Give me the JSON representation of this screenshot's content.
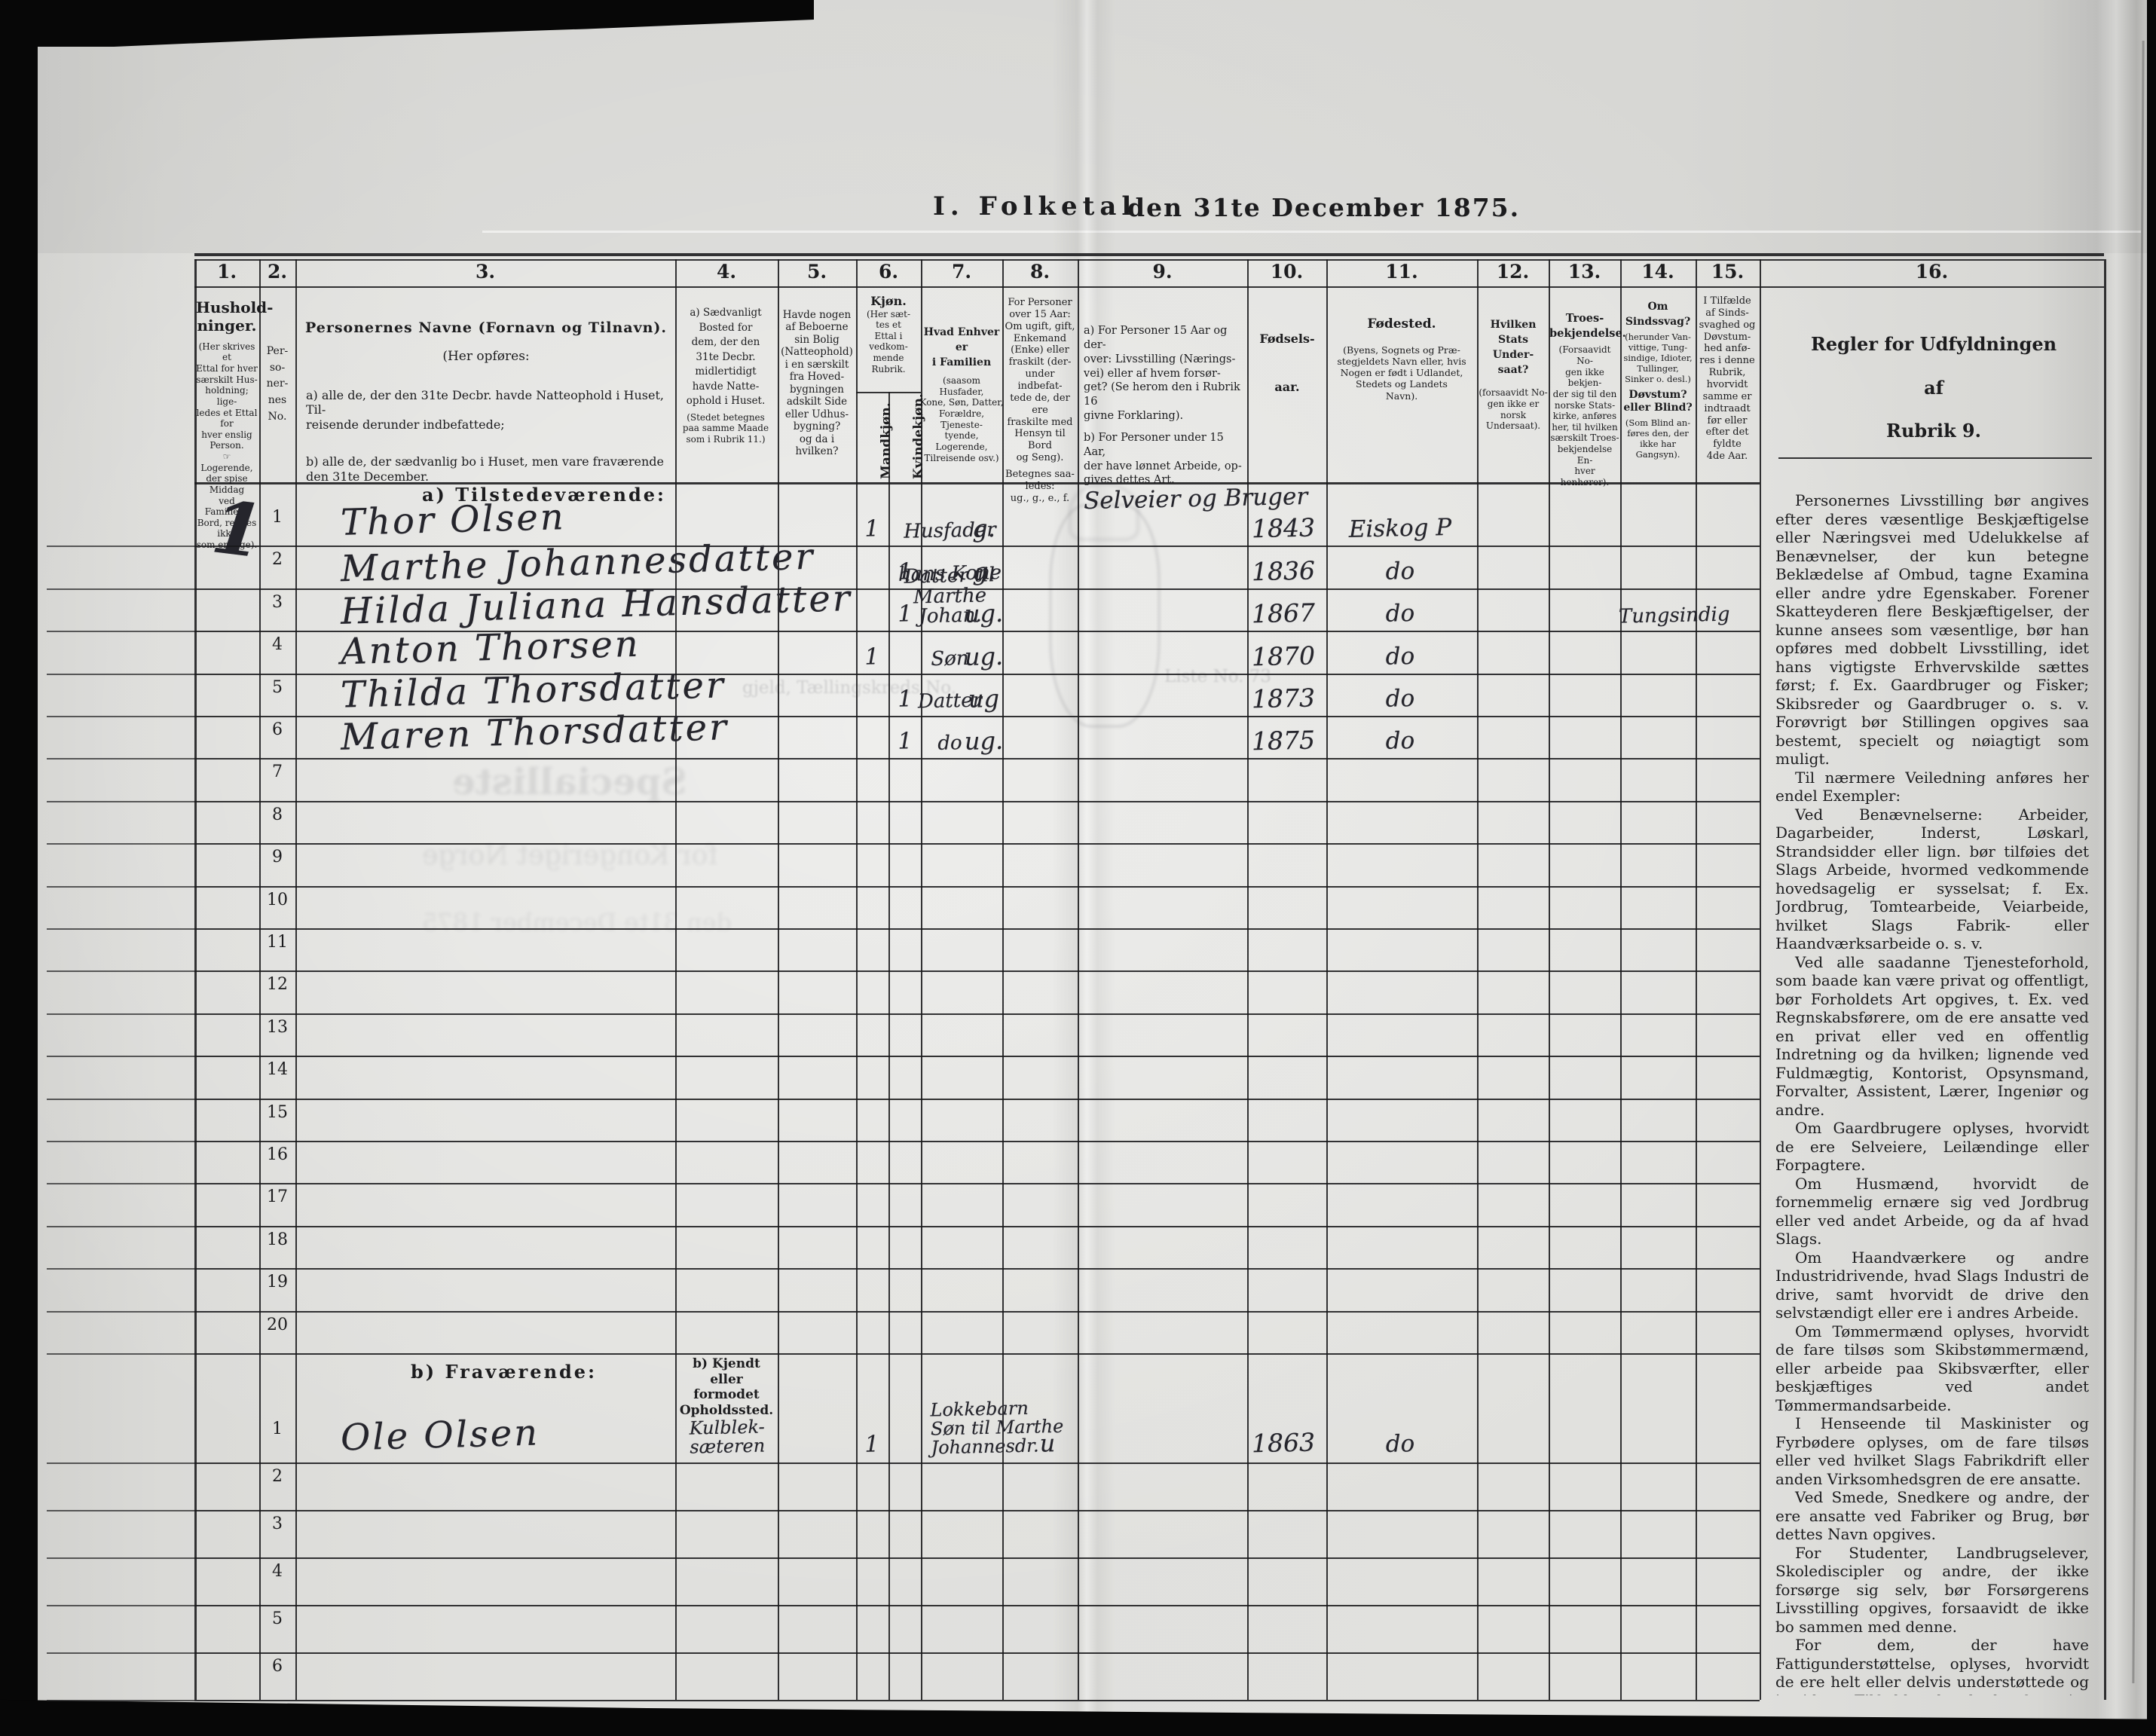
{
  "page": {
    "title_prefix": "I. Folketal",
    "title_suffix": "den 31te December 1875."
  },
  "ghosts": {
    "g1": "Specialliste",
    "g2": "for Kongeriget Norge",
    "g3": "den 31te December 1875",
    "g4": "gjeld, Tællingskreds No.",
    "g5": "Liste No. 73"
  },
  "table": {
    "column_numbers": [
      "1.",
      "2.",
      "3.",
      "4.",
      "5.",
      "6.",
      "7.",
      "8.",
      "9.",
      "10.",
      "11.",
      "12.",
      "13.",
      "14.",
      "15.",
      "16."
    ],
    "headers": {
      "c1": {
        "t": "Hushold-\nninger.",
        "n": "(Her skrives et\nEttal for hver\nsærskilt Hus-\nholdning; lige-\nledes et Ettal for\nhver enslig\nPerson.\n☞ Logerende,\nder spise Middag\nved Familiens\nBord, regnes ikke\nsom enslige)."
      },
      "c2": {
        "t": "Per-\nso-\nner-\nnes\nNo."
      },
      "c3": {
        "t": "Personernes Navne (Fornavn og Tilnavn).",
        "sub": "(Her opføres:",
        "a": "a) alle de, der den 31te Decbr. havde Natteophold i Huset, Til-\n     reisende derunder indbefattede;",
        "b": "b) alle de, der sædvanlig bo i Huset, men vare fraværende\n     den 31te December."
      },
      "c4": {
        "t": "a) Sædvanligt\nBosted for\ndem, der den\n31te Decbr.\nmidlertidigt\nhavde Natte-\nophold i Huset.",
        "n": "(Stedet betegnes\npaa samme Maade\nsom i Rubrik 11.)"
      },
      "c5": {
        "t": "Havde nogen\naf Beboerne\nsin Bolig\n(Natteophold)\ni en særskilt\nfra Hoved-\nbygningen\nadskilt Side\neller Udhus-\nbygning?\nog da i\nhvilken?"
      },
      "c6": {
        "t": "Kjøn.",
        "n": "(Her sæt-\ntes et\nEttal i\nvedkom-\nmende\nRubrik.",
        "m": "Mandkjøn.",
        "k": "Kvindekjøn."
      },
      "c7": {
        "t": "Hvad Enhver er\ni Familien",
        "n": "(saasom Husfader,\nKone, Søn, Datter,\nForældre, Tjeneste-\ntyende, Logerende,\nTilreisende osv.)"
      },
      "c8": {
        "t": "For Personer\nover 15 Aar:\nOm ugift, gift,\nEnkemand\n(Enke) eller\nfraskilt (der-\nunder indbefat-\ntede de, der ere\nfraskilte med\nHensyn til Bord\nog Seng).",
        "n": "Betegnes saa-\nledes:\nug., g., e., f."
      },
      "c9": {
        "t": "a) For Personer 15 Aar og der-\nover: Livsstilling (Nærings-\nvei) eller af hvem forsør-\nget? (Se herom den i Rubrik 16\ngivne Forklaring).",
        "n": "b) For Personer under 15 Aar,\nder have lønnet Arbeide, op-\ngives dettes Art."
      },
      "c10": {
        "t": "Fødsels-",
        "n": "aar."
      },
      "c11": {
        "t": "Fødested.",
        "n": "(Byens, Sognets og Præ-\nstegjeldets Navn eller, hvis\nNogen er født i Udlandet,\nStedets og Landets\nNavn)."
      },
      "c12": {
        "t": "Hvilken\nStats Under-\nsaat?",
        "n": "(forsaavidt No-\ngen ikke er\nnorsk\nUndersaat)."
      },
      "c13": {
        "t": "Troes-\nbekjendelse.",
        "n": "(Forsaavidt No-\ngen ikke bekjen-\nder sig til den\nnorske Stats-\nkirke, anføres\nher, til hvilken\nsærskilt Troes-\nbekjendelse En-\nhver henhører)."
      },
      "c14": {
        "t": "Om\nSindssvag?",
        "n": "(herunder Van-\nvittige, Tung-\nsindige, Idioter,\nTullinger,\nSinker o. desl.)",
        "t2": "Døvstum?\neller Blind?",
        "n2": "(Som Blind an-\nføres den, der\nikke har\nGangsyn)."
      },
      "c15": {
        "t": "I Tilfælde\naf Sinds-\nsvaghed og\nDøvstum-\nhed anfø-\nres i denne\nRubrik,\nhvorvidt\nsamme er\nindtraadt\nfør eller\nefter det\nfyldte\n4de Aar."
      }
    },
    "section_a": {
      "label": "a) Tilstedeværende:",
      "household_no": "1",
      "occupation_note": "Selveier og Bruger",
      "rows": [
        {
          "no": "1",
          "name": "Thor Olsen",
          "m": "1",
          "k": "",
          "family": "Husfader",
          "status": "g.",
          "year": "1843",
          "birthplace": "Eiskog P",
          "health": ""
        },
        {
          "no": "2",
          "name": "Marthe Johannesdatter",
          "m": "",
          "k": "1",
          "family": "hans Kone",
          "status": "g.",
          "year": "1836",
          "birthplace": "do",
          "health": ""
        },
        {
          "no": "3",
          "name": "Hilda Juliana Hansdatter",
          "m": "",
          "k": "1",
          "family": "Datter til\nMarthe Johan.",
          "status": "ug.",
          "year": "1867",
          "birthplace": "do",
          "health": "Tungsindig"
        },
        {
          "no": "4",
          "name": "Anton Thorsen",
          "m": "1",
          "k": "",
          "family": "Søn",
          "status": "ug.",
          "year": "1870",
          "birthplace": "do",
          "health": ""
        },
        {
          "no": "5",
          "name": "Thilda Thorsdatter",
          "m": "",
          "k": "1",
          "family": "Datter",
          "status": "ug",
          "year": "1873",
          "birthplace": "do",
          "health": ""
        },
        {
          "no": "6",
          "name": "Maren Thorsdatter",
          "m": "",
          "k": "1",
          "family": "do",
          "status": "ug.",
          "year": "1875",
          "birthplace": "do",
          "health": ""
        },
        {
          "no": "7"
        },
        {
          "no": "8"
        },
        {
          "no": "9"
        },
        {
          "no": "10"
        },
        {
          "no": "11"
        },
        {
          "no": "12"
        },
        {
          "no": "13"
        },
        {
          "no": "14"
        },
        {
          "no": "15"
        },
        {
          "no": "16"
        },
        {
          "no": "17"
        },
        {
          "no": "18"
        },
        {
          "no": "19"
        },
        {
          "no": "20"
        }
      ]
    },
    "section_b": {
      "label": "b) Fraværende:",
      "residence_header": "b) Kjendt eller\nformodet\nOpholdssted.",
      "rows": [
        {
          "no": "1",
          "name": "Ole Olsen",
          "res": "Kulblek-\nsæteren",
          "m": "1",
          "k": "",
          "family": "Lokkebarn\nSøn til Marthe\nJohannesdr.",
          "status": "u",
          "year": "1863",
          "birthplace": "do"
        },
        {
          "no": "2"
        },
        {
          "no": "3"
        },
        {
          "no": "4"
        },
        {
          "no": "5"
        },
        {
          "no": "6"
        }
      ]
    },
    "instructions": {
      "title_lines": [
        "Regler for Udfyldningen",
        "af",
        "Rubrik 9."
      ],
      "paragraphs": [
        "Personernes Livsstilling bør angives efter deres væsentlige Beskjæftigelse eller Næringsvei med Udelukkelse af Benævnelser, der kun betegne Beklædelse af Ombud, tagne Examina eller andre ydre Egenskaber. Forener Skatteyderen flere Beskjæftigelser, der kunne ansees som væsentlige, bør han opføres med dobbelt Livsstilling, idet hans vigtigste Erhvervskilde sættes først; f. Ex. Gaardbruger og Fisker; Skibsreder og Gaardbruger o. s. v. Forøvrigt bør Stillingen opgives saa bestemt, specielt og nøiagtigt som muligt.",
        "Til nærmere Veiledning anføres her endel Exempler:",
        "Ved Benævnelserne: Arbeider, Dagarbeider, Inderst, Løskarl, Strandsidder eller lign. bør tilføies det Slags Arbeide, hvormed vedkommende hovedsagelig er sysselsat; f. Ex. Jordbrug, Tomtearbeide, Veiarbeide, hvilket Slags Fabrik- eller Haandværksarbeide o. s. v.",
        "Ved alle saadanne Tjenesteforhold, som baade kan være privat og offentligt, bør Forholdets Art opgives, t. Ex. ved Regnskabsførere, om de ere ansatte ved en privat eller ved en offentlig Indretning og da hvilken; lignende ved Fuldmægtig, Kontorist, Opsynsmand, Forvalter, Assistent, Lærer, Ingeniør og andre.",
        "Om Gaardbrugere oplyses, hvorvidt de ere Selveiere, Leilændinge eller Forpagtere.",
        "Om Husmænd, hvorvidt de fornemmelig ernære sig ved Jordbrug eller ved andet Arbeide, og da af hvad Slags.",
        "Om Haandværkere og andre Industridrivende, hvad Slags Industri de drive, samt hvorvidt de drive den selvstændigt eller ere i andres Arbeide.",
        "Om Tømmermænd oplyses, hvorvidt de fare tilsøs som Skibstømmermænd, eller arbeide paa Skibsværfter, eller beskjæftiges ved andet Tømmermandsarbeide.",
        "I Henseende til Maskinister og Fyrbødere oplyses, om de fare tilsøs eller ved hvilket Slags Fabrikdrift eller anden Virksomhedsgren de ere ansatte.",
        "Ved Smede, Snedkere og andre, der ere ansatte ved Fabriker og Brug, bør dettes Navn opgives.",
        "For Studenter, Landbrugselever, Skolediscipler og andre, der ikke forsørge sig selv, bør Forsørgerens Livsstilling opgives, forsaavidt de ikke bo sammen med denne.",
        "For dem, der have Fattigunderstøttelse, oplyses, hvorvidt de ere helt eller delvis understøttede og i sidste Tilfælde, hvad de forøvrigt ernære sig ved."
      ]
    }
  }
}
